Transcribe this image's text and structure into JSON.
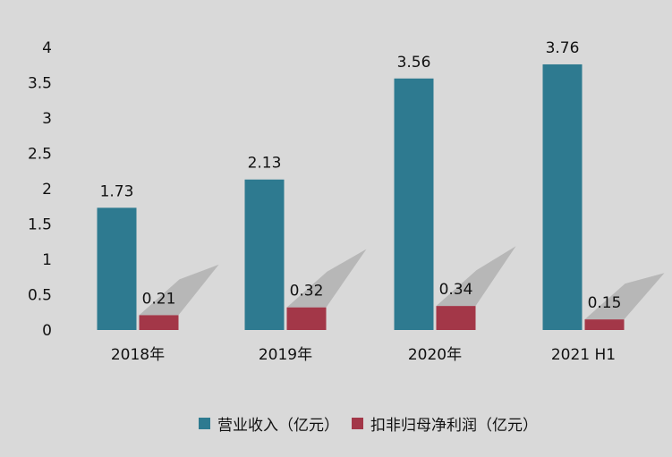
{
  "chart_data": {
    "type": "bar",
    "categories": [
      "2018年",
      "2019年",
      "2020年",
      "2021 H1"
    ],
    "series": [
      {
        "name": "营业收入（亿元）",
        "values": [
          1.73,
          2.13,
          3.56,
          3.76
        ],
        "color": "#2e7a90"
      },
      {
        "name": "扣非归母净利润（亿元）",
        "values": [
          0.21,
          0.32,
          0.34,
          0.15
        ],
        "color": "#a33748"
      }
    ],
    "ylim": [
      0,
      4
    ],
    "yticks": [
      "0",
      "0.5",
      "1",
      "1.5",
      "2",
      "2.5",
      "3",
      "3.5",
      "4"
    ],
    "grid": false,
    "legend": "bottom",
    "data_labels": true,
    "background": "#d9d9d9"
  }
}
